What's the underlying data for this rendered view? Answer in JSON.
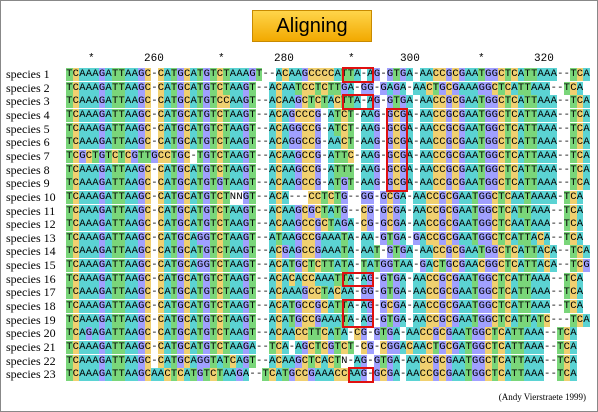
{
  "title": "Aligning",
  "ruler": [
    {
      "text": "*"
    },
    {
      "text": "260"
    },
    {
      "text": "*"
    },
    {
      "text": "280"
    },
    {
      "text": "*"
    },
    {
      "text": "300"
    },
    {
      "text": "*"
    },
    {
      "text": "320"
    }
  ],
  "species": [
    {
      "name": "species 1",
      "seq": "TCAAAGATTAAGC-CATGCATGTCTAAAGT--ACAAGCCCCATTA-AG-GTGA-AACCGCGAATGGCTCATTAAA--TCA"
    },
    {
      "name": "species 2",
      "seq": "TCAAAGATTAAGC-CATGCATGTCTAAGT--ACAATCCTCTTGA-GG-GAGA-AACTGCGAAAGGCTCATTAAA--TCA"
    },
    {
      "name": "species 3",
      "seq": "TCAAAGATTAAGC-CATGCATGTCCAAGT--ACAAGCTCTACTTA-AG-GTGA-AACCGCGAATGGCTCATTAAA--TCA"
    },
    {
      "name": "species 4",
      "seq": "TCAAAGATTAAGC-CATGCATGTCTAAGT--ACAGCCCG-ATCT-AAG-GCGA-AACCGCGAATGGCTCATTAAA--TCA"
    },
    {
      "name": "species 5",
      "seq": "TCAAAGATTAAGC-CATGCATGTCTAAGT--ACAGGCCG-ATCT-AAG-GCGA-AACCGCGAATGGCTCATTAAA--TCA"
    },
    {
      "name": "species 6",
      "seq": "TCAAAGATTAAGC-CATGCATGTCTAAGT--ACAGGCCG-AACT-AAG-GCGA-AACCGCGAATGGCTCATTAAA--TCA"
    },
    {
      "name": "species 7",
      "seq": "TCGCTGTCTCGTTGCCTGC-TGTCTAAGT--ACAAGCCG-ATTC-AAG-GCGA-AACCGCGAATGGCTCATTAAA--TCA"
    },
    {
      "name": "species 8",
      "seq": "TCAAAGATTAAGC-CATGCATGTCTAAGT--ACAAGCCG-ATTT-AAG-GCGA-AACCGCGAATGGCTCATTAAA--TCA"
    },
    {
      "name": "species 9",
      "seq": "TCAAAGATTAAGC-CATGCATGTGTAAGT--ACAAGCCG-ATGT-AAG-GCGA-AACCGCGAATGGCTCATTAAA--TCA"
    },
    {
      "name": "species 10",
      "seq": "TCAAAGATTAAGC-CATGCATGTCTNNGT--ACA---CCTCTG--GG-GCGA-AACCGCGAATGGCTCAATAAAA-TCA"
    },
    {
      "name": "species 11",
      "seq": "TCAAAGATTAAGC-CATGCATGTCTAAGT--ACAAGCGCTATG--CG-GCGA-AACCGCGAATGGCTCATTAAA--TCA"
    },
    {
      "name": "species 12",
      "seq": "TCAAAGATTAAGC-CATGCATGTCTAAGT--ACAAGCCGCTAGA-CG-GCGA-AACCGCGAATGGCTCAATAAA--TCA"
    },
    {
      "name": "species 13",
      "seq": "TCAAAGATTAAGC-CATGCAGGTCTAAGT--ATAAGCCGAAATA-AA-GTGA-GACCGCGAATGGCTCATTACA--TCA"
    },
    {
      "name": "species 14",
      "seq": "TCAAAGATTAAGC-CATGCATGTCTAAGT--ACGAGCCGAAATA-AAT-GTGA-AACCGCGAATGGCTCATTACA--TCA"
    },
    {
      "name": "species 15",
      "seq": "TCAAAGATTAAGC-CATGCAGGTCTAAGT--ACATGCTCTTATA-TATGGTAA-GACTGCGAACGGCTCATTACA--TCG"
    },
    {
      "name": "species 16",
      "seq": "TCAAAGATTAAGC-CATGCATGTCTAAGT--ACACACCAAATTA-AG-GTGA-AACCGCGAATGGCTCATTAAA--TCA"
    },
    {
      "name": "species 17",
      "seq": "TCAAAGATTAAGC-CATGCATGTCTAAGT--ACAAAGCCTACAA-GG-GTGA-AACCGCGAATGGCTCATTAAA--TCA"
    },
    {
      "name": "species 18",
      "seq": "TCAAAGATTAAGC-CATGCATGTCTAAGT--ACATGCCGCATTA-AG-GCGA-AACCGCGAATGGCTCATTAAA--TCA"
    },
    {
      "name": "species 19",
      "seq": "TCAAAGATTAAGC-CATGCATGTCTAAGT--ACATGCCGAAATA-AG-GTGA-AACCGCGAATGGCTCATTATC---TCA"
    },
    {
      "name": "species 20",
      "seq": "TCAGAGATTAAGC-CATGCATGTCTAAGT--ACAACCTTCATA-CG-GTGA-AACCGCGAATGGCTCATTAAA--TCA"
    },
    {
      "name": "species 21",
      "seq": "TCAAAGATTAAGC-CATGCATGTCTAAGA--TCA-AGCTCGTCT-CG-CGGACAACTGCGATGGCTCATTAAA--TCA"
    },
    {
      "name": "species 22",
      "seq": "TCAAAGATTAAGC-CATGCAGGTATCAGT--ACAAGCTCACTN-AG-GTGA-AACCGCGAATGGCTCATTAAA--TCA"
    },
    {
      "name": "species 23",
      "seq": "TCAAAGATTAAGCAACTCATGTCTAAGA--TCATGCCGAAACCAAG-GCGA-AACCGCGAATGGCTCATTAAA--TCA"
    }
  ],
  "highlight_boxes": [
    {
      "label": "insert-1"
    },
    {
      "label": "insert-2"
    },
    {
      "label": "insert-3"
    },
    {
      "label": "insert-4"
    },
    {
      "label": "insert-5"
    }
  ],
  "colors": {
    "A": "#5bd3d3",
    "T": "#7ad67a",
    "C": "#f0d070",
    "G": "#a0a0ff",
    "gap": "#ffffff",
    "box": "#e01010",
    "title_top": "#ffd54a",
    "title_bottom": "#f2a900"
  },
  "credit": "(Andy Vierstraete 1999)"
}
